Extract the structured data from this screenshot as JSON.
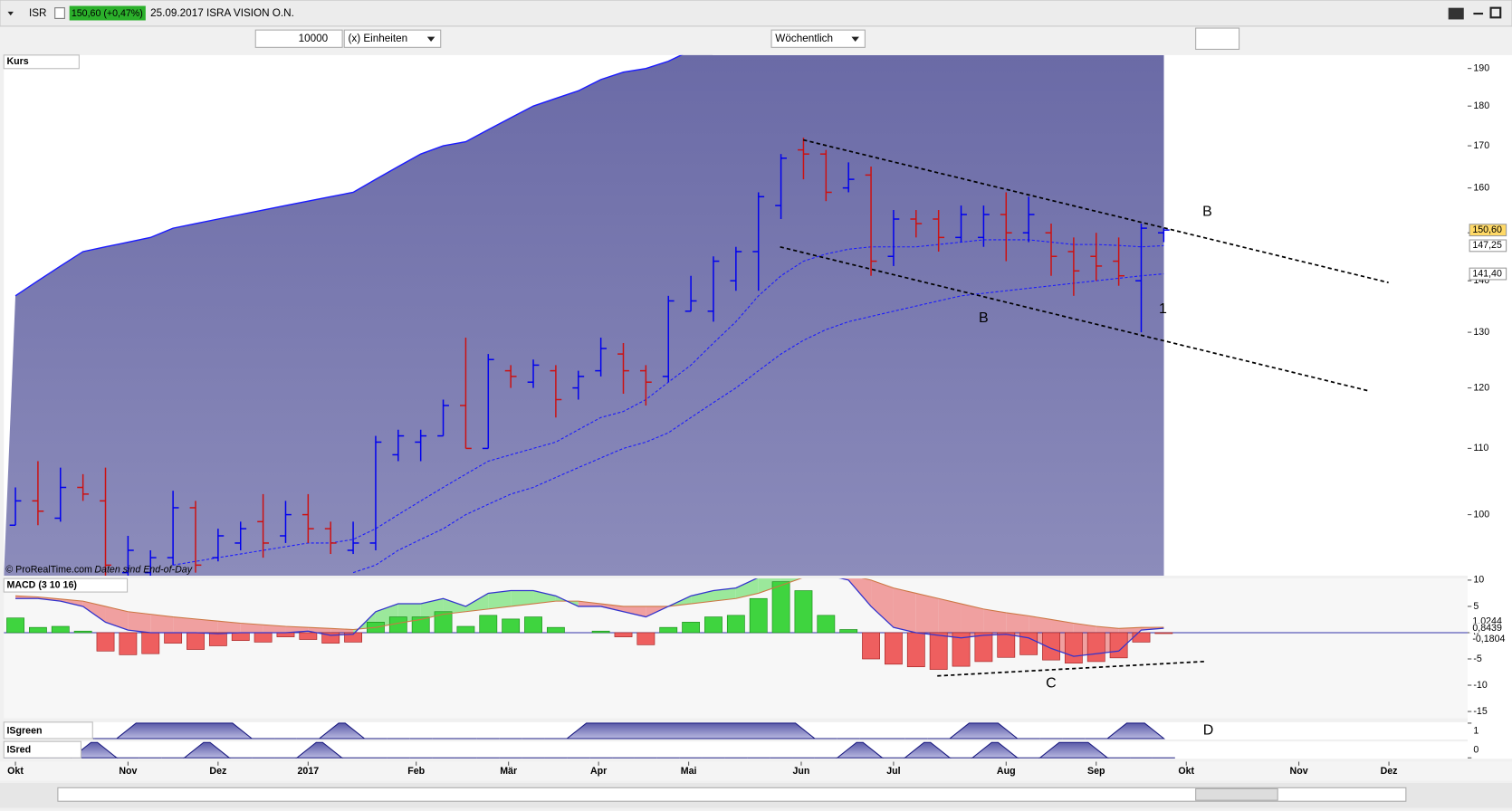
{
  "toolbar": {
    "symbol": "ISR",
    "quote": "150,60 (+0,47%)",
    "instrument": "25.09.2017 ISRA VISION O.N.",
    "quantity": "10000",
    "units": "(x) Einheiten",
    "period": "Wöchentlich"
  },
  "footer": {
    "copyright": "© ProRealTime.com",
    "note": "Daten sind End-of-Day"
  },
  "chart_data": [
    {
      "type": "ohlc",
      "title": "Kurs",
      "log": true,
      "up_color": "#0000ee",
      "down_color": "#cc1111",
      "open": [
        98.5,
        102,
        99.5,
        104,
        102,
        92,
        92,
        94,
        101,
        94,
        96,
        99,
        97,
        100,
        98,
        95,
        96,
        109,
        111,
        112,
        117,
        110,
        123,
        121,
        123,
        120,
        123,
        126,
        123,
        122,
        134,
        134,
        140,
        146,
        156,
        169,
        168,
        160,
        163,
        145,
        153,
        153,
        149,
        149,
        154,
        150,
        150,
        146,
        145,
        144,
        140,
        150
      ],
      "high": [
        104,
        108,
        107,
        106,
        107,
        97,
        95,
        103.5,
        102,
        98,
        99,
        103,
        102,
        103,
        99,
        99,
        112,
        113,
        113,
        118,
        129,
        126,
        124,
        125,
        124,
        123,
        129,
        128,
        124,
        137,
        141,
        145,
        147,
        159,
        168,
        172,
        169,
        166,
        165,
        155,
        155,
        155,
        156,
        156,
        159,
        158,
        152,
        149,
        150,
        149,
        152,
        151
      ],
      "low": [
        98.5,
        98.5,
        99,
        102,
        91,
        90,
        91,
        93,
        92,
        93.5,
        95,
        94,
        96,
        96,
        94.5,
        94.5,
        95,
        108,
        108,
        112,
        110,
        110,
        120,
        120,
        115,
        118,
        122,
        119,
        117,
        121,
        134,
        132,
        138,
        138,
        153,
        162,
        157,
        159,
        141,
        143,
        149,
        146,
        148,
        147,
        144,
        148,
        141,
        137,
        140,
        139,
        130,
        148
      ],
      "close": [
        102,
        100.5,
        104,
        103,
        93,
        95,
        94,
        101,
        93,
        97,
        98,
        96,
        100,
        98,
        96,
        96,
        111,
        112,
        112,
        117,
        110,
        125,
        122,
        124,
        118,
        122,
        127,
        123,
        121,
        136,
        136,
        144,
        146,
        158,
        167,
        168,
        159,
        162,
        144,
        153,
        152,
        149,
        154,
        154,
        150,
        154,
        145,
        142,
        143,
        141,
        151,
        150.6
      ],
      "band_upper": [
        137,
        140,
        143,
        146,
        147,
        148,
        149,
        151,
        152,
        153,
        154,
        155,
        156,
        157,
        158,
        159,
        162,
        165,
        168,
        170,
        171,
        174,
        177,
        180,
        182,
        184,
        187,
        189,
        190,
        192,
        195,
        null,
        null,
        null,
        null,
        null,
        null,
        null,
        null,
        null,
        null,
        null,
        null,
        null,
        null,
        null,
        null,
        null,
        null,
        null,
        null,
        null
      ],
      "ma_fast": [
        null,
        null,
        null,
        null,
        null,
        null,
        null,
        93,
        93.5,
        94,
        94.5,
        95,
        95.5,
        96,
        96,
        96.5,
        98,
        100,
        102,
        104,
        106,
        108,
        109,
        110,
        111,
        113,
        115,
        116,
        118,
        121,
        124,
        128,
        132,
        137,
        141,
        144,
        145.5,
        146.5,
        147,
        147,
        147,
        147.5,
        148,
        148.5,
        148.5,
        148.5,
        148,
        147.5,
        147.5,
        147.3,
        147,
        147.25
      ],
      "ma_slow": [
        null,
        null,
        null,
        null,
        null,
        null,
        null,
        null,
        null,
        null,
        null,
        null,
        null,
        null,
        null,
        92,
        93,
        95,
        96.5,
        98,
        100,
        101.5,
        103,
        104,
        105.5,
        107,
        108.5,
        110,
        111,
        112.5,
        115,
        117.5,
        120,
        123,
        126,
        128.5,
        130.5,
        132,
        133,
        134,
        135,
        136,
        137,
        137.5,
        138,
        138.5,
        139,
        139.5,
        140,
        140.5,
        141,
        141.4
      ],
      "last_labels": [
        {
          "value": 150.6,
          "label": "150,60"
        },
        {
          "value": 147.25,
          "label": "147,25"
        },
        {
          "value": 141.4,
          "label": "141,40"
        }
      ],
      "annotations": [
        "B",
        "B",
        "1"
      ],
      "ylim": [
        91.6,
        193.7
      ],
      "yticks": [
        100,
        110,
        120,
        130,
        140,
        150,
        160,
        170,
        180,
        190
      ],
      "xticks": [
        {
          "value": 0,
          "label": "Okt"
        },
        {
          "value": 5,
          "label": "Nov"
        },
        {
          "value": 9,
          "label": "Dez"
        },
        {
          "value": 13,
          "label": "2017"
        },
        {
          "value": 17.8,
          "label": "Feb"
        },
        {
          "value": 21.9,
          "label": "Mär"
        },
        {
          "value": 25.9,
          "label": "Apr"
        },
        {
          "value": 29.9,
          "label": "Mai"
        },
        {
          "value": 34.9,
          "label": "Jun"
        },
        {
          "value": 39,
          "label": "Jul"
        },
        {
          "value": 44,
          "label": "Aug"
        },
        {
          "value": 48,
          "label": "Sep"
        },
        {
          "value": 52,
          "label": "Okt"
        },
        {
          "value": 57,
          "label": "Nov"
        },
        {
          "value": 61,
          "label": "Dez"
        }
      ]
    },
    {
      "type": "macd",
      "title": "MACD (3 10 16)",
      "histogram": [
        2.8,
        1,
        1.2,
        0.3,
        -3.5,
        -4.2,
        -4,
        -2,
        -3.2,
        -2.5,
        -1.5,
        -1.8,
        -0.8,
        -1.3,
        -2,
        -1.8,
        2,
        3,
        3,
        4,
        1.2,
        3.3,
        2.6,
        3,
        1,
        0,
        0.3,
        -0.8,
        -2.3,
        1,
        2,
        3,
        3.3,
        6.5,
        9.7,
        8,
        3.3,
        0.6,
        -5,
        -6,
        -6.5,
        -7,
        -6.4,
        -5.5,
        -4.7,
        -4.2,
        -5.2,
        -5.8,
        -5.5,
        -4.8,
        -1.8,
        -0.1804
      ],
      "macd": [
        6.5,
        6.5,
        6,
        5,
        2,
        0.5,
        0,
        0,
        0,
        -0.2,
        0,
        0,
        0,
        0.3,
        -0.5,
        -0.3,
        4,
        5.5,
        5.5,
        6.5,
        5,
        7.5,
        8,
        8,
        7,
        5,
        5,
        4,
        3,
        5,
        7,
        8,
        8.5,
        10.5,
        12,
        12,
        11,
        10,
        5,
        1,
        0,
        -0.5,
        -1,
        -0.5,
        -0.3,
        -1,
        -3,
        -4.5,
        -4,
        -3.5,
        0.5,
        0.8439
      ],
      "signal": [
        7,
        6.8,
        6.4,
        6,
        5,
        4,
        3.5,
        3,
        2.6,
        2.2,
        1.8,
        1.5,
        1.2,
        1,
        0.8,
        0.6,
        1,
        1.8,
        2.5,
        3.5,
        4,
        4.5,
        5,
        5.5,
        6,
        6,
        5.5,
        5,
        5,
        5,
        5.5,
        6,
        6.5,
        7.5,
        9,
        10.5,
        11,
        11,
        10,
        8.5,
        7.5,
        6.5,
        5.5,
        4.5,
        3.8,
        3.2,
        2.5,
        1.8,
        1.2,
        0.8,
        1,
        1.0244
      ],
      "last_labels": [
        {
          "value": 1.0244,
          "label": "1,0244"
        },
        {
          "value": 0.8439,
          "label": "0,8439"
        },
        {
          "value": -0.1804,
          "label": "-0,1804"
        }
      ],
      "annotations": [
        "C"
      ],
      "ylim": [
        -16.3,
        10.3
      ],
      "yticks": [
        10,
        5,
        0,
        -5,
        -10,
        -15
      ]
    },
    {
      "type": "binary",
      "title": "ISgreen",
      "values": [
        0,
        0,
        0,
        0,
        0,
        1,
        1,
        1,
        1,
        1,
        1,
        0,
        0,
        0,
        1,
        1,
        0,
        0,
        0,
        0,
        0,
        0,
        0,
        0,
        0,
        1,
        1,
        1,
        1,
        1,
        1,
        1,
        1,
        1,
        1,
        1,
        0,
        0,
        0,
        0,
        0,
        0,
        1,
        1,
        1,
        0,
        0,
        0,
        0,
        1,
        1,
        1
      ],
      "ylim": [
        0,
        1
      ],
      "yticks": [
        1
      ],
      "annotations": [
        "D"
      ]
    },
    {
      "type": "binary",
      "title": "ISred",
      "values": [
        0,
        0,
        0,
        1,
        1,
        0,
        0,
        0,
        1,
        1,
        0,
        0,
        0,
        1,
        1,
        0,
        0,
        0,
        0,
        0,
        0,
        0,
        0,
        0,
        0,
        0,
        0,
        0,
        0,
        0,
        0,
        0,
        0,
        0,
        0,
        0,
        0,
        1,
        1,
        0,
        1,
        1,
        0,
        1,
        1,
        0,
        1,
        1,
        1,
        0,
        0,
        0
      ],
      "ylim": [
        0,
        1
      ],
      "yticks": [
        0
      ]
    }
  ]
}
